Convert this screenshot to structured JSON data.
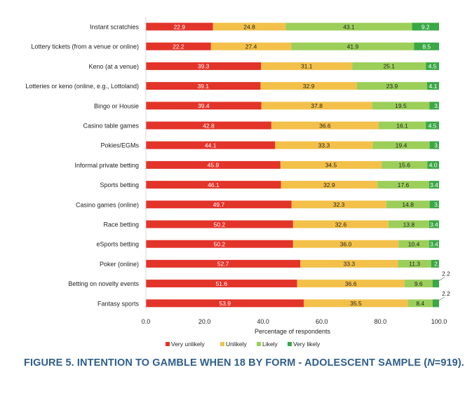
{
  "chart_data": {
    "type": "bar",
    "stacked": true,
    "orientation": "horizontal",
    "categories": [
      "Instant scratchies",
      "Lottery tickets (from a venue or online)",
      "Keno (at a venue)",
      "Lotteries or keno (online, e.g., Lottoland)",
      "Bingo or Housie",
      "Casino table games",
      "Pokies/EGMs",
      "Informal private betting",
      "Sports betting",
      "Casino games (online)",
      "Race betting",
      "eSports betting",
      "Poker (online)",
      "Betting on novelty events",
      "Fantasy sports"
    ],
    "series": [
      {
        "name": "Very unlikely",
        "color": "#e3342a",
        "values": [
          22.9,
          22.2,
          39.3,
          39.1,
          39.4,
          42.8,
          44.1,
          45.9,
          46.1,
          49.7,
          50.2,
          50.2,
          52.7,
          51.6,
          53.9
        ]
      },
      {
        "name": "Unlikely",
        "color": "#f3c14a",
        "values": [
          24.8,
          27.4,
          31.1,
          32.9,
          37.8,
          36.6,
          33.3,
          34.5,
          32.9,
          32.3,
          32.6,
          36.0,
          33.3,
          36.6,
          35.5
        ]
      },
      {
        "name": "Likely",
        "color": "#9ccf5a",
        "values": [
          43.1,
          41.9,
          25.1,
          23.9,
          19.5,
          16.1,
          19.4,
          15.6,
          17.6,
          14.8,
          13.8,
          10.4,
          11.3,
          9.6,
          8.4
        ]
      },
      {
        "name": "Very likely",
        "color": "#3aa845",
        "values": [
          9.2,
          8.5,
          4.5,
          4.1,
          3.3,
          4.5,
          3.2,
          4.0,
          3.4,
          3.2,
          3.4,
          3.4,
          2.7,
          2.2,
          2.2
        ]
      }
    ],
    "value_labels": [
      [
        "22.9",
        "24.8",
        "43.1",
        "9.2"
      ],
      [
        "22.2",
        "27.4",
        "41.9",
        "8.5"
      ],
      [
        "39.3",
        "31.1",
        "25.1",
        "4.5"
      ],
      [
        "39.1",
        "32.9",
        "23.9",
        "4.1"
      ],
      [
        "39.4",
        "37.8",
        "19.5",
        "3.3"
      ],
      [
        "42.8",
        "36.6",
        "16.1",
        "4.5"
      ],
      [
        "44.1",
        "33.3",
        "19.4",
        "3.2"
      ],
      [
        "45.9",
        "34.5",
        "15.6",
        "4.0"
      ],
      [
        "46.1",
        "32.9",
        "17.6",
        "3.4"
      ],
      [
        "49.7",
        "32.3",
        "14.8",
        "3.2"
      ],
      [
        "50.2",
        "32.6",
        "13.8",
        "3.4"
      ],
      [
        "50.2",
        "36.0",
        "10.4",
        "3.4"
      ],
      [
        "52.7",
        "33.3",
        "11.3",
        "2.7"
      ],
      [
        "51.6",
        "36.6",
        "9.6",
        "2.2"
      ],
      [
        "53.9",
        "35.5",
        "8.4",
        "2.2"
      ]
    ],
    "xlim": [
      0,
      100
    ],
    "xticks": [
      "0.0",
      "20.0",
      "40.0",
      "60.0",
      "80.0",
      "100.0"
    ],
    "xlabel": "Percentage of respondents",
    "legend_position": "bottom",
    "grid": false
  },
  "caption": {
    "text": "FIGURE 5. INTENTION TO GAMBLE WHEN 18 BY FORM - ADOLESCENT SAMPLE (",
    "n_symbol": "N",
    "n_value": "=919)."
  }
}
